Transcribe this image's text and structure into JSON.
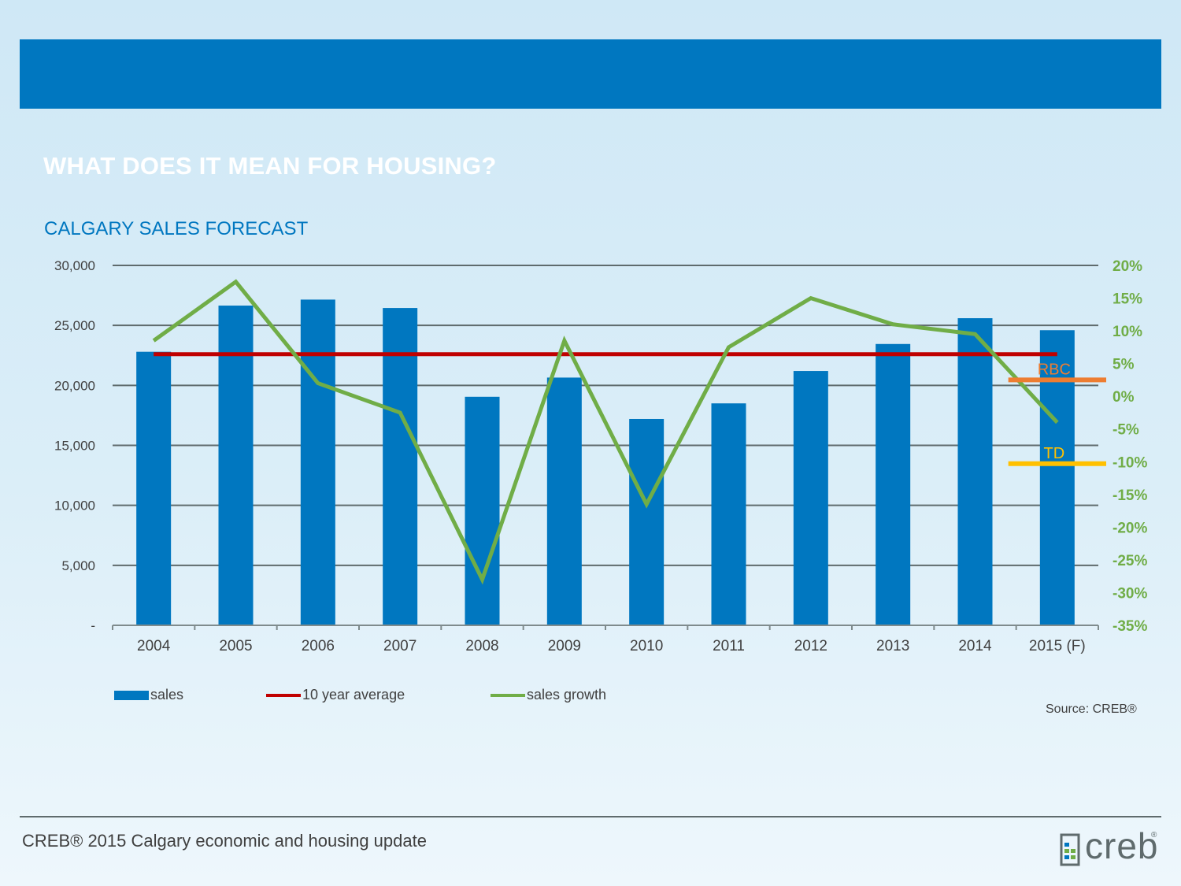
{
  "slide": {
    "title": "WHAT DOES IT MEAN FOR HOUSING?",
    "footer_text": "CREB® 2015 Calgary economic and housing update",
    "logo_text": "creb",
    "logo_mark": "®",
    "source": "Source: CREB®"
  },
  "colors": {
    "header_band": "#0077c0",
    "sales": "#0077c0",
    "ten_year_average": "#c00000",
    "sales_growth": "#70ad47",
    "rbc": "#ed7d31",
    "td": "#ffc000",
    "gridline": "#5f6b6d"
  },
  "chart_data": {
    "type": "bar",
    "title": "CALGARY SALES FORECAST",
    "categories": [
      "2004",
      "2005",
      "2006",
      "2007",
      "2008",
      "2009",
      "2010",
      "2011",
      "2012",
      "2013",
      "2014",
      "2015 (F)"
    ],
    "series": [
      {
        "name": "sales",
        "type": "bar",
        "axis": "left",
        "values": [
          22800,
          26650,
          27150,
          26450,
          19050,
          20650,
          17200,
          18500,
          21200,
          23450,
          25600,
          24600
        ]
      },
      {
        "name": "10 year average",
        "type": "line",
        "axis": "left",
        "values": [
          22600,
          22600,
          22600,
          22600,
          22600,
          22600,
          22600,
          22600,
          22600,
          22600,
          22600,
          22600
        ]
      },
      {
        "name": "sales growth",
        "type": "line",
        "axis": "right",
        "values": [
          8.5,
          17.5,
          2,
          -2.5,
          -28,
          8.5,
          -16.5,
          7.5,
          15,
          11,
          9.5,
          -4
        ]
      }
    ],
    "forecasts": [
      {
        "label": "RBC",
        "axis": "right",
        "value": 2.5
      },
      {
        "label": "TD",
        "axis": "right",
        "value": -10.3
      }
    ],
    "y_left": {
      "ylim": [
        0,
        30000
      ],
      "ticks": [
        0,
        5000,
        10000,
        15000,
        20000,
        25000,
        30000
      ],
      "tick_labels": [
        "-",
        "5,000",
        "10,000",
        "15,000",
        "20,000",
        "25,000",
        "30,000"
      ]
    },
    "y_right": {
      "ylim": [
        -35,
        20
      ],
      "ticks": [
        -35,
        -30,
        -25,
        -20,
        -15,
        -10,
        -5,
        0,
        5,
        10,
        15,
        20
      ],
      "tick_labels": [
        "-35%",
        "-30%",
        "-25%",
        "-20%",
        "-15%",
        "-10%",
        "-5%",
        "0%",
        "5%",
        "10%",
        "15%",
        "20%"
      ]
    },
    "grid": true,
    "legend": {
      "position": "bottom-left",
      "entries": [
        "sales",
        "10 year average",
        "sales growth"
      ]
    }
  }
}
